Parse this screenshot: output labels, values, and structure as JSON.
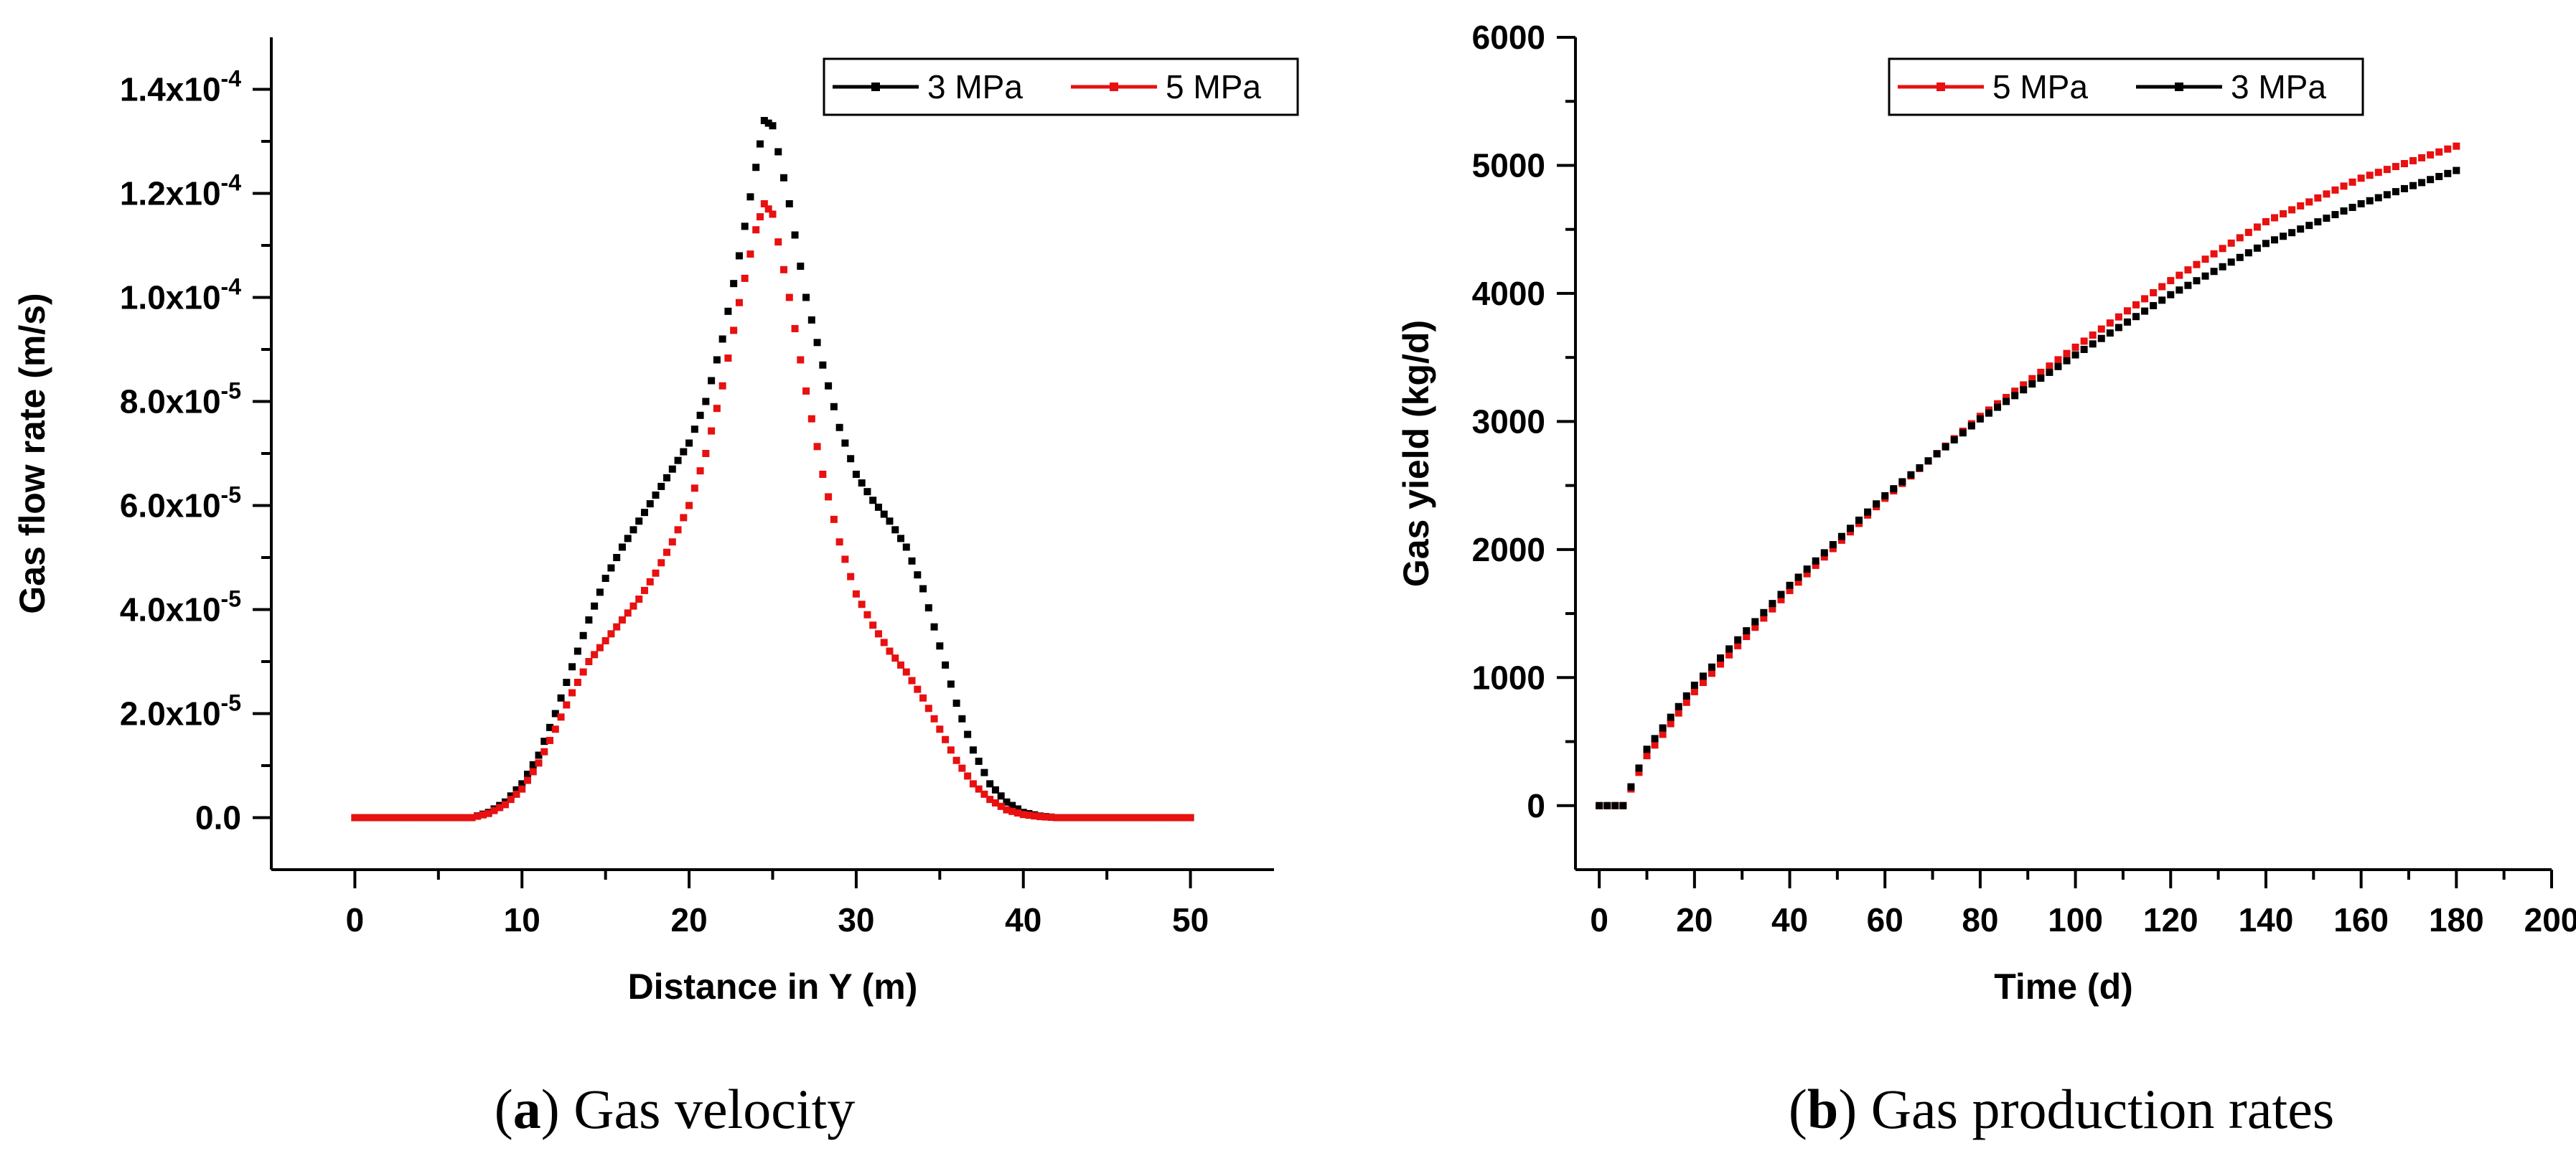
{
  "chart_data": [
    {
      "type": "scatter",
      "panel": "a",
      "caption_letter": "a",
      "caption_text": " Gas velocity",
      "xlabel": "Distance in Y (m)",
      "ylabel": "Gas flow rate (m/s)",
      "xlim": [
        -5,
        55
      ],
      "ylim": [
        -1e-05,
        0.00015
      ],
      "xticks": [
        0,
        10,
        20,
        30,
        40,
        50
      ],
      "xtick_labels": [
        "0",
        "10",
        "20",
        "30",
        "40",
        "50"
      ],
      "yticks": [
        0,
        2e-05,
        4e-05,
        6e-05,
        8e-05,
        0.0001,
        0.00012,
        0.00014
      ],
      "ytick_labels": [
        {
          "base": "0.0",
          "exp": ""
        },
        {
          "base": "2.0x10",
          "exp": "-5"
        },
        {
          "base": "4.0x10",
          "exp": "-5"
        },
        {
          "base": "6.0x10",
          "exp": "-5"
        },
        {
          "base": "8.0x10",
          "exp": "-5"
        },
        {
          "base": "1.0x10",
          "exp": "-4"
        },
        {
          "base": "1.2x10",
          "exp": "-4"
        },
        {
          "base": "1.4x10",
          "exp": "-4"
        }
      ],
      "legend_position": "top-right",
      "series": [
        {
          "name": "3 MPa",
          "color": "#000000",
          "points": [
            [
              0,
              0
            ],
            [
              4,
              0
            ],
            [
              7,
              0
            ],
            [
              8,
              1e-06
            ],
            [
              9,
              3e-06
            ],
            [
              10,
              6.5e-06
            ],
            [
              11,
              1.2e-05
            ],
            [
              12,
              2e-05
            ],
            [
              13,
              2.9e-05
            ],
            [
              14,
              3.8e-05
            ],
            [
              15,
              4.6e-05
            ],
            [
              16,
              5.2e-05
            ],
            [
              17,
              5.7e-05
            ],
            [
              18,
              6.2e-05
            ],
            [
              19,
              6.7e-05
            ],
            [
              20,
              7.2e-05
            ],
            [
              21,
              8e-05
            ],
            [
              22,
              9.2e-05
            ],
            [
              23,
              0.000108
            ],
            [
              24,
              0.000125
            ],
            [
              24.5,
              0.000134
            ],
            [
              25,
              0.000133
            ],
            [
              26,
              0.000118
            ],
            [
              27,
              0.0001
            ],
            [
              28,
              8.7e-05
            ],
            [
              29,
              7.5e-05
            ],
            [
              30,
              6.6e-05
            ],
            [
              31,
              6.1e-05
            ],
            [
              32,
              5.7e-05
            ],
            [
              33,
              5.2e-05
            ],
            [
              34,
              4.4e-05
            ],
            [
              35,
              3.3e-05
            ],
            [
              36,
              2.2e-05
            ],
            [
              37,
              1.3e-05
            ],
            [
              38,
              6.5e-06
            ],
            [
              39,
              3e-06
            ],
            [
              40,
              1e-06
            ],
            [
              41,
              3e-07
            ],
            [
              42,
              0
            ],
            [
              46,
              0
            ],
            [
              50,
              0
            ]
          ]
        },
        {
          "name": "5 MPa",
          "color": "#e81010",
          "points": [
            [
              0,
              0
            ],
            [
              4,
              0
            ],
            [
              7,
              0
            ],
            [
              8,
              8e-07
            ],
            [
              9,
              2.5e-06
            ],
            [
              10,
              5.5e-06
            ],
            [
              11,
              1.05e-05
            ],
            [
              12,
              1.7e-05
            ],
            [
              13,
              2.4e-05
            ],
            [
              14,
              3e-05
            ],
            [
              15,
              3.4e-05
            ],
            [
              16,
              3.8e-05
            ],
            [
              17,
              4.2e-05
            ],
            [
              18,
              4.7e-05
            ],
            [
              19,
              5.3e-05
            ],
            [
              20,
              6e-05
            ],
            [
              21,
              7e-05
            ],
            [
              22,
              8.3e-05
            ],
            [
              23,
              9.9e-05
            ],
            [
              24,
              0.000113
            ],
            [
              24.5,
              0.000118
            ],
            [
              25,
              0.000116
            ],
            [
              26,
              0.0001
            ],
            [
              27,
              8.2e-05
            ],
            [
              28,
              6.6e-05
            ],
            [
              29,
              5.3e-05
            ],
            [
              30,
              4.3e-05
            ],
            [
              31,
              3.7e-05
            ],
            [
              32,
              3.2e-05
            ],
            [
              33,
              2.8e-05
            ],
            [
              34,
              2.3e-05
            ],
            [
              35,
              1.7e-05
            ],
            [
              36,
              1.1e-05
            ],
            [
              37,
              6.5e-06
            ],
            [
              38,
              3.5e-06
            ],
            [
              39,
              1.5e-06
            ],
            [
              40,
              6e-07
            ],
            [
              41,
              2e-07
            ],
            [
              42,
              0
            ],
            [
              46,
              0
            ],
            [
              50,
              0
            ]
          ]
        }
      ]
    },
    {
      "type": "scatter",
      "panel": "b",
      "caption_letter": "b",
      "caption_text": " Gas production rates",
      "xlabel": "Time (d)",
      "ylabel": "Gas yield (kg/d)",
      "xlim": [
        -5,
        200
      ],
      "ylim": [
        -500,
        6000
      ],
      "xticks": [
        0,
        20,
        40,
        60,
        80,
        100,
        120,
        140,
        160,
        180,
        200
      ],
      "xtick_labels": [
        "0",
        "20",
        "40",
        "60",
        "80",
        "100",
        "120",
        "140",
        "160",
        "180",
        "200"
      ],
      "yticks": [
        0,
        1000,
        2000,
        3000,
        4000,
        5000,
        6000
      ],
      "ytick_labels": [
        {
          "base": "0",
          "exp": ""
        },
        {
          "base": "1000",
          "exp": ""
        },
        {
          "base": "2000",
          "exp": ""
        },
        {
          "base": "3000",
          "exp": ""
        },
        {
          "base": "4000",
          "exp": ""
        },
        {
          "base": "5000",
          "exp": ""
        },
        {
          "base": "6000",
          "exp": ""
        }
      ],
      "legend_position": "top-right",
      "series": [
        {
          "name": "5 MPa",
          "color": "#e81010",
          "points": [
            [
              0,
              0
            ],
            [
              5,
              0
            ],
            [
              10,
              390
            ],
            [
              20,
              890
            ],
            [
              40,
              1680
            ],
            [
              60,
              2400
            ],
            [
              80,
              3040
            ],
            [
              100,
              3580
            ],
            [
              120,
              4100
            ],
            [
              140,
              4560
            ],
            [
              160,
              4900
            ],
            [
              180,
              5150
            ]
          ]
        },
        {
          "name": "3 MPa",
          "color": "#000000",
          "points": [
            [
              0,
              0
            ],
            [
              5,
              0
            ],
            [
              10,
              440
            ],
            [
              20,
              940
            ],
            [
              40,
              1720
            ],
            [
              60,
              2420
            ],
            [
              80,
              3020
            ],
            [
              100,
              3520
            ],
            [
              120,
              3990
            ],
            [
              140,
              4390
            ],
            [
              160,
              4700
            ],
            [
              180,
              4960
            ]
          ]
        }
      ]
    }
  ]
}
